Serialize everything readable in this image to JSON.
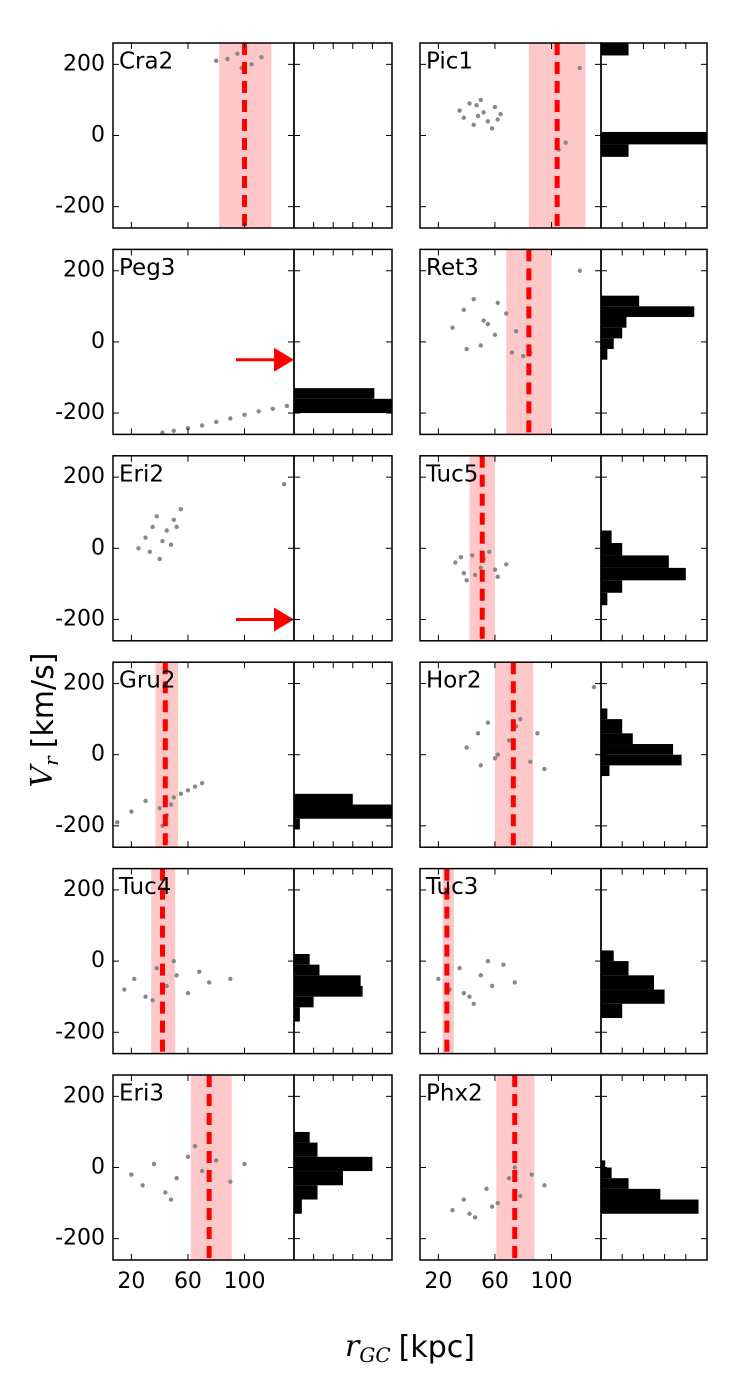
{
  "ylabel": {
    "symbol": "V",
    "subscript": "r",
    "unit": "[km/s]"
  },
  "xlabel": {
    "symbol": "r",
    "subscript": "GC",
    "unit": "[kpc]"
  },
  "chart_data": [
    {
      "type": "scatter",
      "title": "Cra2",
      "color": "#888888",
      "xlim": [
        7,
        135
      ],
      "ylim": [
        -260,
        260
      ],
      "xticks": [
        20,
        60,
        100
      ],
      "yticks": [
        -200,
        0,
        200
      ],
      "x": [
        80,
        95,
        105,
        112,
        98,
        88
      ],
      "y": [
        210,
        230,
        200,
        220,
        190,
        215
      ],
      "distance": 100,
      "band": [
        82,
        119
      ],
      "line_color": "#ff0000",
      "band_color": "#ffc8c8",
      "hist_xlim": [
        0,
        5
      ],
      "hist_xticks": [
        1,
        2,
        3,
        4
      ]
    },
    {
      "type": "scatter",
      "title": "Pic1",
      "color": "#888888",
      "xlim": [
        7,
        135
      ],
      "ylim": [
        -260,
        260
      ],
      "xticks": [
        20,
        60,
        100
      ],
      "yticks": [
        -200,
        0,
        200
      ],
      "x": [
        35,
        42,
        48,
        55,
        60,
        64,
        50,
        45,
        58,
        38,
        52,
        47,
        62,
        110,
        105,
        120
      ],
      "y": [
        70,
        90,
        55,
        40,
        80,
        60,
        100,
        30,
        20,
        50,
        65,
        85,
        45,
        -20,
        -40,
        190
      ],
      "distance": 104,
      "band": [
        84,
        124
      ],
      "line_color": "#ff0000",
      "band_color": "#ffc8c8",
      "hist_bins": [
        -60,
        -25,
        10,
        225,
        260
      ],
      "hist_counts": [
        1.3,
        5,
        0,
        1.3
      ],
      "hist_color": "#000000",
      "hist_xlim": [
        0,
        5
      ],
      "hist_xticks": [
        1,
        2,
        3,
        4
      ]
    },
    {
      "type": "scatter",
      "title": "Peg3",
      "color": "#888888",
      "xlim": [
        7,
        135
      ],
      "ylim": [
        -260,
        260
      ],
      "xticks": [
        20,
        60,
        100
      ],
      "yticks": [
        -200,
        0,
        200
      ],
      "x": [
        42,
        50,
        60,
        70,
        80,
        90,
        100,
        110,
        120,
        130
      ],
      "y": [
        -255,
        -250,
        -243,
        -235,
        -225,
        -215,
        -205,
        -195,
        -188,
        -180
      ],
      "arrow_y": -50,
      "line_color": "#ff0000",
      "hist_bins": [
        -200,
        -160,
        -130
      ],
      "hist_counts": [
        5,
        4.1
      ],
      "hist_color": "#000000",
      "hist_xlim": [
        0,
        5
      ],
      "hist_xticks": [
        1,
        2,
        3,
        4
      ]
    },
    {
      "type": "scatter",
      "title": "Ret3",
      "color": "#888888",
      "xlim": [
        7,
        135
      ],
      "ylim": [
        -260,
        260
      ],
      "xticks": [
        20,
        60,
        100
      ],
      "yticks": [
        -200,
        0,
        200
      ],
      "x": [
        30,
        38,
        45,
        52,
        60,
        68,
        75,
        40,
        50,
        62,
        72,
        55,
        80,
        85,
        120
      ],
      "y": [
        40,
        90,
        120,
        60,
        20,
        80,
        30,
        -20,
        -10,
        110,
        -30,
        50,
        -40,
        -30,
        200
      ],
      "distance": 84,
      "band": [
        68,
        100
      ],
      "line_color": "#ff0000",
      "band_color": "#ffc8c8",
      "hist_bins": [
        -50,
        -20,
        10,
        40,
        70,
        100,
        130
      ],
      "hist_counts": [
        0.3,
        0.6,
        1,
        1.2,
        4.4,
        1.8
      ],
      "hist_color": "#000000",
      "hist_xlim": [
        0,
        5
      ],
      "hist_xticks": [
        1,
        2,
        3,
        4
      ]
    },
    {
      "type": "scatter",
      "title": "Eri2",
      "color": "#888888",
      "xlim": [
        7,
        135
      ],
      "ylim": [
        -260,
        260
      ],
      "xticks": [
        20,
        60,
        100
      ],
      "yticks": [
        -200,
        0,
        200
      ],
      "x": [
        25,
        30,
        35,
        38,
        42,
        45,
        50,
        55,
        40,
        33,
        48,
        52,
        128
      ],
      "y": [
        0,
        30,
        60,
        90,
        20,
        50,
        80,
        110,
        -30,
        -10,
        10,
        60,
        180
      ],
      "arrow_y": -200,
      "line_color": "#ff0000",
      "hist_xlim": [
        0,
        5
      ],
      "hist_xticks": [
        1,
        2,
        3,
        4
      ]
    },
    {
      "type": "scatter",
      "title": "Tuc5",
      "color": "#888888",
      "xlim": [
        7,
        135
      ],
      "ylim": [
        -260,
        260
      ],
      "xticks": [
        20,
        60,
        100
      ],
      "yticks": [
        -200,
        0,
        200
      ],
      "x": [
        32,
        38,
        44,
        50,
        56,
        62,
        68,
        40,
        52,
        60,
        46,
        36
      ],
      "y": [
        -40,
        -70,
        -20,
        -55,
        -10,
        -80,
        -45,
        -90,
        -30,
        -60,
        -75,
        -25
      ],
      "distance": 51,
      "band": [
        42,
        60
      ],
      "line_color": "#ff0000",
      "band_color": "#ffc8c8",
      "hist_bins": [
        -160,
        -125,
        -90,
        -55,
        -20,
        15,
        50
      ],
      "hist_counts": [
        0.3,
        1,
        4,
        3.2,
        1,
        0.5
      ],
      "hist_color": "#000000",
      "hist_xlim": [
        0,
        5
      ],
      "hist_xticks": [
        1,
        2,
        3,
        4
      ]
    },
    {
      "type": "scatter",
      "title": "Gru2",
      "color": "#888888",
      "xlim": [
        7,
        135
      ],
      "ylim": [
        -260,
        260
      ],
      "xticks": [
        20,
        60,
        100
      ],
      "yticks": [
        -200,
        0,
        200
      ],
      "x": [
        10,
        20,
        30,
        40,
        45,
        50,
        55,
        60,
        65,
        70,
        42,
        48
      ],
      "y": [
        -190,
        -160,
        -130,
        -150,
        -170,
        -120,
        -110,
        -100,
        -90,
        -80,
        -200,
        -140
      ],
      "distance": 44,
      "band": [
        37,
        53
      ],
      "line_color": "#ff0000",
      "band_color": "#ffc8c8",
      "hist_bins": [
        -210,
        -180,
        -140,
        -110
      ],
      "hist_counts": [
        0.3,
        5,
        3
      ],
      "hist_color": "#000000",
      "hist_xlim": [
        0,
        5
      ],
      "hist_xticks": [
        1,
        2,
        3,
        4
      ]
    },
    {
      "type": "scatter",
      "title": "Hor2",
      "color": "#888888",
      "xlim": [
        7,
        135
      ],
      "ylim": [
        -260,
        260
      ],
      "xticks": [
        20,
        60,
        100
      ],
      "yticks": [
        -200,
        0,
        200
      ],
      "x": [
        40,
        48,
        55,
        62,
        70,
        78,
        85,
        90,
        50,
        60,
        75,
        95,
        130
      ],
      "y": [
        20,
        60,
        90,
        0,
        40,
        100,
        -20,
        60,
        -30,
        -10,
        80,
        -40,
        190
      ],
      "distance": 73,
      "band": [
        60,
        87
      ],
      "line_color": "#ff0000",
      "band_color": "#ffc8c8",
      "hist_bins": [
        -60,
        -30,
        0,
        30,
        60,
        100,
        130
      ],
      "hist_counts": [
        0.4,
        3.8,
        3.4,
        1.5,
        1,
        0.3
      ],
      "hist_color": "#000000",
      "hist_xlim": [
        0,
        5
      ],
      "hist_xticks": [
        1,
        2,
        3,
        4
      ]
    },
    {
      "type": "scatter",
      "title": "Tuc4",
      "color": "#888888",
      "xlim": [
        7,
        135
      ],
      "ylim": [
        -260,
        260
      ],
      "xticks": [
        20,
        60,
        100
      ],
      "yticks": [
        -200,
        0,
        200
      ],
      "x": [
        15,
        22,
        30,
        38,
        45,
        52,
        60,
        68,
        75,
        35,
        50,
        90
      ],
      "y": [
        -80,
        -50,
        -100,
        -20,
        -70,
        -40,
        -90,
        -30,
        -60,
        -110,
        0,
        -50
      ],
      "distance": 42,
      "band": [
        34,
        51
      ],
      "line_color": "#ff0000",
      "band_color": "#ffc8c8",
      "hist_bins": [
        -170,
        -130,
        -100,
        -70,
        -40,
        -10,
        20
      ],
      "hist_counts": [
        0.3,
        1,
        3.5,
        3.4,
        1.3,
        0.8
      ],
      "hist_color": "#000000",
      "hist_xlim": [
        0,
        5
      ],
      "hist_xticks": [
        1,
        2,
        3,
        4
      ]
    },
    {
      "type": "scatter",
      "title": "Tuc3",
      "color": "#888888",
      "xlim": [
        7,
        135
      ],
      "ylim": [
        -260,
        260
      ],
      "xticks": [
        20,
        60,
        100
      ],
      "yticks": [
        -200,
        0,
        200
      ],
      "x": [
        20,
        28,
        35,
        42,
        50,
        58,
        66,
        74,
        45,
        55,
        38
      ],
      "y": [
        -50,
        -80,
        -20,
        -100,
        -40,
        -70,
        -10,
        -60,
        -120,
        0,
        -90
      ],
      "distance": 26,
      "band": [
        23,
        31
      ],
      "line_color": "#ff0000",
      "band_color": "#ffc8c8",
      "hist_bins": [
        -160,
        -120,
        -80,
        -40,
        0,
        30
      ],
      "hist_counts": [
        1,
        3,
        2.5,
        1.3,
        0.6
      ],
      "hist_color": "#000000",
      "hist_xlim": [
        0,
        5
      ],
      "hist_xticks": [
        1,
        2,
        3,
        4
      ]
    },
    {
      "type": "scatter",
      "title": "Eri3",
      "color": "#888888",
      "xlim": [
        7,
        135
      ],
      "ylim": [
        -260,
        260
      ],
      "xticks": [
        20,
        60,
        100
      ],
      "yticks": [
        -200,
        0,
        200
      ],
      "x": [
        20,
        28,
        36,
        44,
        52,
        60,
        70,
        80,
        90,
        100,
        48,
        65
      ],
      "y": [
        -20,
        -50,
        10,
        -70,
        -30,
        30,
        -10,
        20,
        -40,
        10,
        -90,
        60
      ],
      "distance": 75,
      "band": [
        62,
        91
      ],
      "line_color": "#ff0000",
      "band_color": "#ffc8c8",
      "hist_bins": [
        -130,
        -90,
        -50,
        -10,
        30,
        70,
        100
      ],
      "hist_counts": [
        0.4,
        1.2,
        2.5,
        4,
        1.2,
        0.8
      ],
      "hist_color": "#000000",
      "hist_xlim": [
        0,
        5
      ],
      "hist_xticks": [
        1,
        2,
        3,
        4
      ]
    },
    {
      "type": "scatter",
      "title": "Phx2",
      "color": "#888888",
      "xlim": [
        7,
        135
      ],
      "ylim": [
        -260,
        260
      ],
      "xticks": [
        20,
        60,
        100
      ],
      "yticks": [
        -200,
        0,
        200
      ],
      "x": [
        30,
        38,
        46,
        54,
        62,
        70,
        78,
        86,
        95,
        42,
        58,
        74
      ],
      "y": [
        -120,
        -90,
        -140,
        -60,
        -100,
        -30,
        -80,
        -20,
        -50,
        -130,
        -110,
        0
      ],
      "distance": 74,
      "band": [
        61,
        88
      ],
      "line_color": "#ff0000",
      "band_color": "#ffc8c8",
      "hist_bins": [
        -130,
        -90,
        -60,
        -30,
        0,
        20
      ],
      "hist_counts": [
        4.6,
        2.8,
        1.3,
        0.5,
        0.2
      ],
      "hist_color": "#000000",
      "hist_xlim": [
        0,
        5
      ],
      "hist_xticks": [
        1,
        2,
        3,
        4
      ]
    }
  ]
}
